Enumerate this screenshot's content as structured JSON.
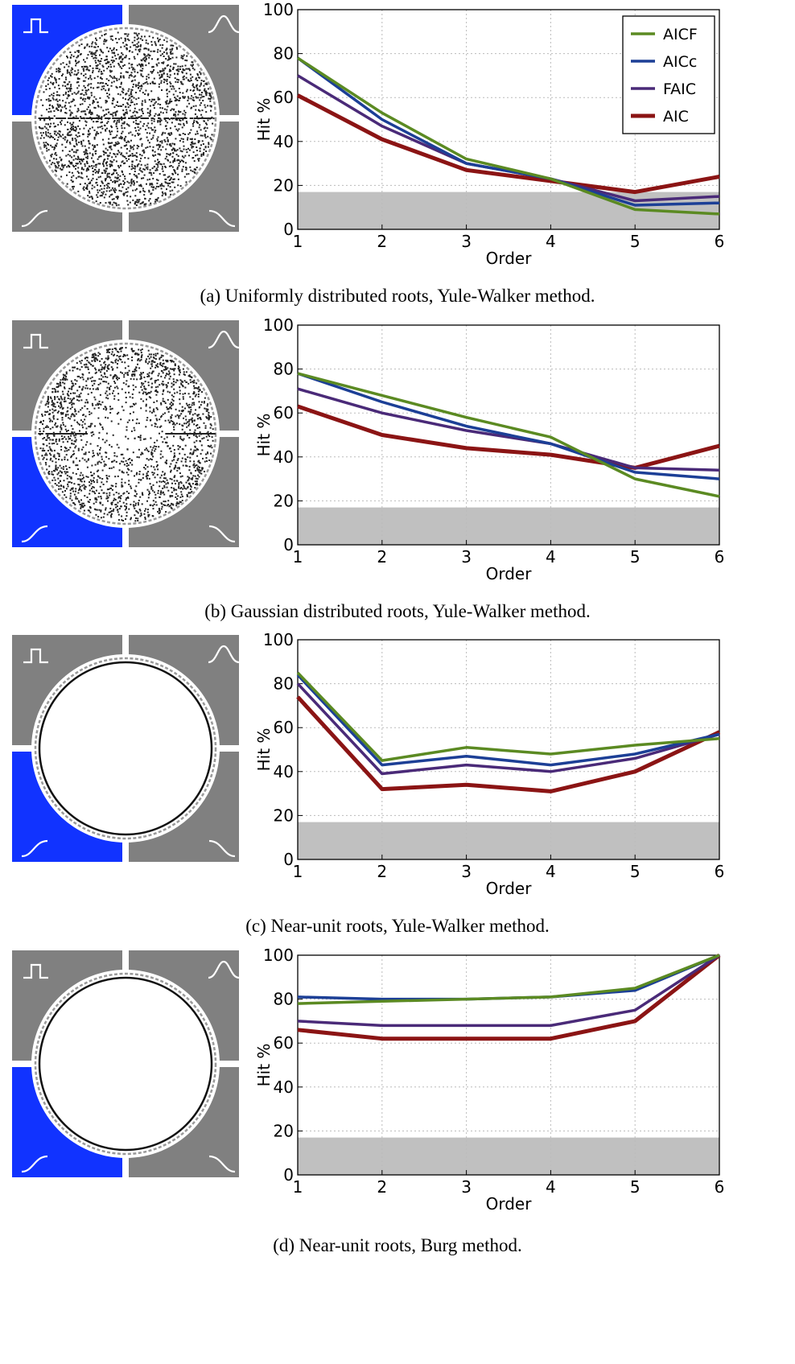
{
  "colors": {
    "AICF": "#5b8a22",
    "AICc": "#1c3f96",
    "FAIC": "#4a2a78",
    "AIC": "#8b1414",
    "highlight": "#1133ff",
    "quadrant": "#808080",
    "baseline_band": "#c0c0c0"
  },
  "chart_data": [
    {
      "type": "line",
      "panel": "a",
      "caption": "(a) Uniformly distributed roots, Yule-Walker method.",
      "xlabel": "Order",
      "ylabel": "Hit %",
      "xlim": [
        1,
        6
      ],
      "ylim": [
        0,
        100
      ],
      "xticks": [
        "1",
        "2",
        "3",
        "4",
        "5",
        "6"
      ],
      "yticks": [
        "0",
        "20",
        "40",
        "60",
        "80",
        "100"
      ],
      "grid": true,
      "baseline_band": 17,
      "legend": {
        "show": true,
        "placement": "top-right"
      },
      "root_distribution": "uniform",
      "highlighted_quadrant": "top-left",
      "x": [
        1,
        2,
        3,
        4,
        5,
        6
      ],
      "series": [
        {
          "name": "AICF",
          "values": [
            78,
            53,
            32,
            23,
            9,
            7
          ]
        },
        {
          "name": "AICc",
          "values": [
            78,
            50,
            30,
            23,
            11,
            12
          ]
        },
        {
          "name": "FAIC",
          "values": [
            70,
            47,
            30,
            23,
            13,
            15
          ]
        },
        {
          "name": "AIC",
          "values": [
            61,
            41,
            27,
            22,
            17,
            24
          ]
        }
      ]
    },
    {
      "type": "line",
      "panel": "b",
      "caption": "(b) Gaussian distributed roots, Yule-Walker method.",
      "xlabel": "Order",
      "ylabel": "Hit %",
      "xlim": [
        1,
        6
      ],
      "ylim": [
        0,
        100
      ],
      "xticks": [
        "1",
        "2",
        "3",
        "4",
        "5",
        "6"
      ],
      "yticks": [
        "0",
        "20",
        "40",
        "60",
        "80",
        "100"
      ],
      "grid": true,
      "baseline_band": 17,
      "legend": {
        "show": false
      },
      "root_distribution": "gaussian",
      "highlighted_quadrant": "bottom-left",
      "x": [
        1,
        2,
        3,
        4,
        5,
        6
      ],
      "series": [
        {
          "name": "AICF",
          "values": [
            78,
            68,
            58,
            49,
            30,
            22
          ]
        },
        {
          "name": "AICc",
          "values": [
            78,
            65,
            54,
            46,
            33,
            30
          ]
        },
        {
          "name": "FAIC",
          "values": [
            71,
            60,
            52,
            46,
            35,
            34
          ]
        },
        {
          "name": "AIC",
          "values": [
            63,
            50,
            44,
            41,
            35,
            45
          ]
        }
      ]
    },
    {
      "type": "line",
      "panel": "c",
      "caption": "(c) Near-unit roots, Yule-Walker method.",
      "xlabel": "Order",
      "ylabel": "Hit %",
      "xlim": [
        1,
        6
      ],
      "ylim": [
        0,
        100
      ],
      "xticks": [
        "1",
        "2",
        "3",
        "4",
        "5",
        "6"
      ],
      "yticks": [
        "0",
        "20",
        "40",
        "60",
        "80",
        "100"
      ],
      "grid": true,
      "baseline_band": 17,
      "legend": {
        "show": false
      },
      "root_distribution": "near-unit",
      "highlighted_quadrant": "bottom-left",
      "x": [
        1,
        2,
        3,
        4,
        5,
        6
      ],
      "series": [
        {
          "name": "AICF",
          "values": [
            85,
            45,
            51,
            48,
            52,
            55
          ]
        },
        {
          "name": "AICc",
          "values": [
            84,
            43,
            47,
            43,
            48,
            57
          ]
        },
        {
          "name": "FAIC",
          "values": [
            80,
            39,
            43,
            40,
            46,
            57
          ]
        },
        {
          "name": "AIC",
          "values": [
            74,
            32,
            34,
            31,
            40,
            58
          ]
        }
      ]
    },
    {
      "type": "line",
      "panel": "d",
      "caption": "(d) Near-unit roots, Burg method.",
      "xlabel": "Order",
      "ylabel": "Hit %",
      "xlim": [
        1,
        6
      ],
      "ylim": [
        0,
        100
      ],
      "xticks": [
        "1",
        "2",
        "3",
        "4",
        "5",
        "6"
      ],
      "yticks": [
        "0",
        "20",
        "40",
        "60",
        "80",
        "100"
      ],
      "grid": true,
      "baseline_band": 17,
      "legend": {
        "show": false
      },
      "root_distribution": "near-unit",
      "highlighted_quadrant": "bottom-left",
      "x": [
        1,
        2,
        3,
        4,
        5,
        6
      ],
      "series": [
        {
          "name": "AICF",
          "values": [
            78,
            79,
            80,
            81,
            85,
            100
          ]
        },
        {
          "name": "AICc",
          "values": [
            81,
            80,
            80,
            81,
            84,
            100
          ]
        },
        {
          "name": "FAIC",
          "values": [
            70,
            68,
            68,
            68,
            75,
            100
          ]
        },
        {
          "name": "AIC",
          "values": [
            66,
            62,
            62,
            62,
            70,
            100
          ]
        }
      ]
    }
  ]
}
